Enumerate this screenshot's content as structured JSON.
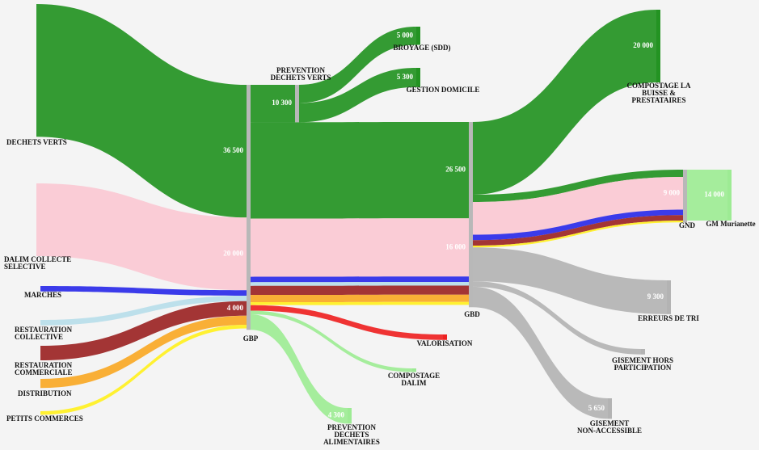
{
  "chart_data": {
    "type": "sankey",
    "nodes": [
      {
        "label": [
          "DECHETS VERTS"
        ]
      },
      {
        "label": [
          "DALIM COLLECTE",
          "SELECTIVE"
        ]
      },
      {
        "label": [
          "MARCHES"
        ]
      },
      {
        "label": [
          "RESTAURATION",
          "COLLECTIVE"
        ]
      },
      {
        "label": [
          "RESTAURATION",
          "COMMERCIALE"
        ]
      },
      {
        "label": [
          "DISTRIBUTION"
        ]
      },
      {
        "label": [
          "PETITS COMMERCES"
        ]
      },
      {
        "label": [
          "GBP"
        ]
      },
      {
        "label": [
          "PREVENTION",
          "DECHETS VERTS"
        ]
      },
      {
        "label": [
          "BROYAGE (SDD)"
        ]
      },
      {
        "label": [
          "GESTION DOMICILE"
        ]
      },
      {
        "label": [
          "GBD"
        ]
      },
      {
        "label": [
          "VALORISATION"
        ]
      },
      {
        "label": [
          "COMPOSTAGE",
          "DALIM"
        ]
      },
      {
        "label": [
          "PREVENTION",
          "DECHETS",
          "ALIMENTAIRES"
        ]
      },
      {
        "label": [
          "COMPOSTAGE LA",
          "BUISSE &",
          "PRESTATAIRES"
        ]
      },
      {
        "label": [
          "GND"
        ]
      },
      {
        "label": [
          "GM Murianette"
        ]
      },
      {
        "label": [
          "ERREURS DE TRI"
        ]
      },
      {
        "label": [
          "GISEMENT HORS",
          "PARTICIPATION"
        ]
      },
      {
        "label": [
          "GISEMENT",
          "NON-ACCESSIBLE"
        ]
      }
    ],
    "links": [
      {
        "source": 0,
        "target": 7,
        "value": 36500,
        "value_label": "36 500",
        "color": "#239322"
      },
      {
        "source": 1,
        "target": 7,
        "value": 20000,
        "value_label": "20 000",
        "color": "#fac8d2"
      },
      {
        "source": 2,
        "target": 7,
        "value": 1500,
        "color": "#2a2ae8"
      },
      {
        "source": 3,
        "target": 7,
        "value": 1500,
        "color": "#b7dde9"
      },
      {
        "source": 4,
        "target": 7,
        "value": 4000,
        "value_label": "4 000",
        "color": "#9b2424"
      },
      {
        "source": 5,
        "target": 7,
        "value": 2500,
        "color": "#f9a825"
      },
      {
        "source": 6,
        "target": 7,
        "value": 1000,
        "color": "#fff01f"
      },
      {
        "source": 7,
        "target": 8,
        "value": 10300,
        "value_label": "10 300",
        "color": "#239322"
      },
      {
        "source": 8,
        "target": 9,
        "value": 5000,
        "value_label": "5 000",
        "color": "#239322"
      },
      {
        "source": 8,
        "target": 10,
        "value": 5300,
        "value_label": "5 300",
        "color": "#239322"
      },
      {
        "source": 7,
        "target": 11,
        "value": 26500,
        "value_label": "26 500",
        "color": "#239322"
      },
      {
        "source": 7,
        "target": 11,
        "value": 16000,
        "value_label": "16 000",
        "color": "#fac8d2"
      },
      {
        "source": 7,
        "target": 11,
        "value": 1500,
        "color": "#2a2ae8"
      },
      {
        "source": 7,
        "target": 11,
        "value": 1000,
        "color": "#b7dde9"
      },
      {
        "source": 7,
        "target": 11,
        "value": 2500,
        "color": "#9b2424"
      },
      {
        "source": 7,
        "target": 11,
        "value": 2000,
        "color": "#f9a825"
      },
      {
        "source": 7,
        "target": 11,
        "value": 800,
        "color": "#fff01f"
      },
      {
        "source": 7,
        "target": 12,
        "value": 1500,
        "color": "#ee2222"
      },
      {
        "source": 7,
        "target": 13,
        "value": 1000,
        "color": "#9deb94"
      },
      {
        "source": 7,
        "target": 14,
        "value": 4300,
        "value_label": "4 300",
        "color": "#9deb94"
      },
      {
        "source": 11,
        "target": 15,
        "value": 20000,
        "value_label": "20 000",
        "color": "#239322"
      },
      {
        "source": 11,
        "target": 16,
        "value": 2000,
        "color": "#239322"
      },
      {
        "source": 11,
        "target": 16,
        "value": 9000,
        "value_label": "9 000",
        "color": "#fac8d2"
      },
      {
        "source": 11,
        "target": 16,
        "value": 1500,
        "color": "#2a2ae8"
      },
      {
        "source": 11,
        "target": 16,
        "value": 1500,
        "color": "#9b2424"
      },
      {
        "source": 11,
        "target": 16,
        "value": 500,
        "color": "#fff01f"
      },
      {
        "source": 11,
        "target": 18,
        "value": 9300,
        "value_label": "9 300",
        "color": "#b3b3b3"
      },
      {
        "source": 11,
        "target": 19,
        "value": 1500,
        "color": "#b3b3b3"
      },
      {
        "source": 11,
        "target": 20,
        "value": 5650,
        "value_label": "5 650",
        "color": "#b3b3b3"
      },
      {
        "source": 16,
        "target": 17,
        "value": 14000,
        "value_label": "14 000",
        "color": "#9deb94"
      }
    ]
  }
}
